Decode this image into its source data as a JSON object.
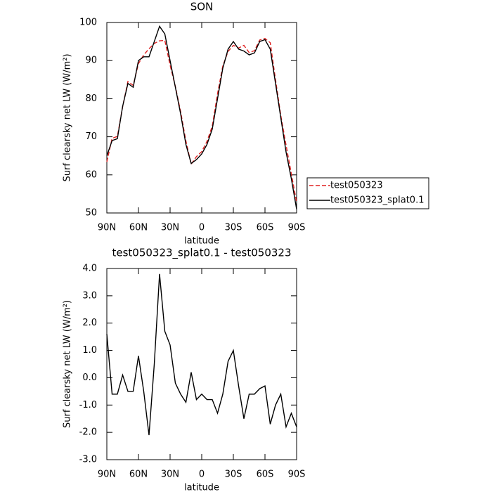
{
  "chart_data": [
    {
      "type": "line",
      "title": "SON",
      "x_label": "latitude",
      "y_label": "Surf clearsky net LW (W/m²)",
      "x": [
        90,
        85,
        80,
        75,
        70,
        65,
        60,
        55,
        50,
        45,
        40,
        35,
        30,
        25,
        20,
        15,
        10,
        5,
        0,
        -5,
        -10,
        -15,
        -20,
        -25,
        -30,
        -35,
        -40,
        -45,
        -50,
        -55,
        -60,
        -65,
        -70,
        -75,
        -80,
        -85,
        -90
      ],
      "series": [
        {
          "name": "test050323",
          "color": "#e02020",
          "dash": "dashed",
          "values": [
            63.4,
            69.6,
            70.1,
            77.9,
            84.5,
            83.5,
            89.2,
            91.5,
            93.1,
            94.5,
            95.2,
            95.3,
            88.8,
            83.2,
            76.6,
            68.9,
            62.8,
            64.8,
            66.1,
            68.8,
            72.8,
            81.3,
            88.6,
            92.4,
            94,
            93.3,
            94,
            92.1,
            92.6,
            95.4,
            95.8,
            94.7,
            85,
            75.6,
            67.8,
            60.3,
            52.8
          ]
        },
        {
          "name": "test050323_splat0.1",
          "color": "#000000",
          "dash": "solid",
          "values": [
            65,
            69,
            69.5,
            78,
            84,
            83,
            90,
            91,
            91,
            95,
            99,
            97,
            90,
            83,
            76,
            68,
            63,
            64,
            65.5,
            68,
            72,
            80,
            88,
            93,
            95,
            93,
            92.5,
            91.5,
            92,
            95,
            95.5,
            93,
            84,
            75,
            66,
            59,
            51
          ]
        }
      ],
      "xlim": [
        90,
        -90
      ],
      "xticks": [
        {
          "value": 90,
          "label": "90N"
        },
        {
          "value": 60,
          "label": "60N"
        },
        {
          "value": 30,
          "label": "30N"
        },
        0,
        {
          "value": -30,
          "label": "30S"
        },
        {
          "value": -60,
          "label": "60S"
        },
        {
          "value": -90,
          "label": "90S"
        }
      ],
      "ylim": [
        50,
        100
      ],
      "yticks": [
        50,
        60,
        70,
        80,
        90,
        100
      ],
      "legend": "right"
    },
    {
      "type": "line",
      "title": "test050323_splat0.1 - test050323",
      "x_label": "latitude",
      "y_label": "Surf clearsky net LW (W/m²)",
      "x": [
        90,
        85,
        80,
        75,
        70,
        65,
        60,
        55,
        50,
        45,
        40,
        35,
        30,
        25,
        20,
        15,
        10,
        5,
        0,
        -5,
        -10,
        -15,
        -20,
        -25,
        -30,
        -35,
        -40,
        -45,
        -50,
        -55,
        -60,
        -65,
        -70,
        -75,
        -80,
        -85,
        -90
      ],
      "color": "#000000",
      "values": [
        1.6,
        -0.6,
        -0.6,
        0.1,
        -0.5,
        -0.5,
        0.8,
        -0.5,
        -2.1,
        0.5,
        3.8,
        1.7,
        1.2,
        -0.2,
        -0.6,
        -0.9,
        0.2,
        -0.8,
        -0.6,
        -0.8,
        -0.8,
        -1.3,
        -0.6,
        0.6,
        1.0,
        -0.3,
        -1.5,
        -0.6,
        -0.6,
        -0.4,
        -0.3,
        -1.7,
        -1.0,
        -0.6,
        -1.8,
        -1.3,
        -1.8
      ],
      "xlim": [
        90,
        -90
      ],
      "xticks": [
        {
          "value": 90,
          "label": "90N"
        },
        {
          "value": 60,
          "label": "60N"
        },
        {
          "value": 30,
          "label": "30N"
        },
        0,
        {
          "value": -30,
          "label": "30S"
        },
        {
          "value": -60,
          "label": "60S"
        },
        {
          "value": -90,
          "label": "90S"
        }
      ],
      "ylim": [
        -3,
        4
      ],
      "yticks": [
        {
          "value": -3,
          "label": "-3.0"
        },
        {
          "value": -2,
          "label": "-2.0"
        },
        {
          "value": -1,
          "label": "-1.0"
        },
        {
          "value": 0,
          "label": "0.0"
        },
        {
          "value": 1,
          "label": "1.0"
        },
        {
          "value": 2,
          "label": "2.0"
        },
        {
          "value": 3,
          "label": "3.0"
        },
        {
          "value": 4,
          "label": "4.0"
        }
      ]
    }
  ]
}
